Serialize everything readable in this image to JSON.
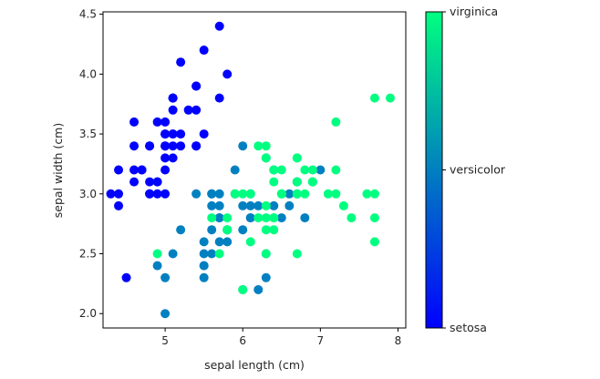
{
  "chart_data": {
    "type": "scatter",
    "title": "",
    "xlabel": "sepal length (cm)",
    "ylabel": "sepal width (cm)",
    "xlim": [
      4.2,
      8.1
    ],
    "ylim": [
      1.88,
      4.52
    ],
    "x_ticks": [
      5,
      6,
      7,
      8
    ],
    "x_tick_labels": [
      "5",
      "6",
      "7",
      "8"
    ],
    "y_ticks": [
      2.0,
      2.5,
      3.0,
      3.5,
      4.0,
      4.5
    ],
    "y_tick_labels": [
      "2.0",
      "2.5",
      "3.0",
      "3.5",
      "4.0",
      "4.5"
    ],
    "grid": false,
    "colormap": {
      "low": "#0000ff",
      "high": "#00ff80"
    },
    "colorbar": {
      "ticks": [
        0,
        1,
        2
      ],
      "labels": [
        "setosa",
        "versicolor",
        "virginica"
      ]
    },
    "series": [
      {
        "class_index": 0,
        "color": "#0000ff",
        "points": [
          [
            5.1,
            3.5
          ],
          [
            4.9,
            3.0
          ],
          [
            4.7,
            3.2
          ],
          [
            4.6,
            3.1
          ],
          [
            5.0,
            3.6
          ],
          [
            5.4,
            3.9
          ],
          [
            4.6,
            3.4
          ],
          [
            5.0,
            3.4
          ],
          [
            4.4,
            2.9
          ],
          [
            4.9,
            3.1
          ],
          [
            5.4,
            3.7
          ],
          [
            4.8,
            3.4
          ],
          [
            4.8,
            3.0
          ],
          [
            4.3,
            3.0
          ],
          [
            5.8,
            4.0
          ],
          [
            5.7,
            4.4
          ],
          [
            5.4,
            3.9
          ],
          [
            5.1,
            3.5
          ],
          [
            5.7,
            3.8
          ],
          [
            5.1,
            3.8
          ],
          [
            5.4,
            3.4
          ],
          [
            5.1,
            3.7
          ],
          [
            4.6,
            3.6
          ],
          [
            5.1,
            3.3
          ],
          [
            4.8,
            3.4
          ],
          [
            5.0,
            3.0
          ],
          [
            5.0,
            3.4
          ],
          [
            5.2,
            3.5
          ],
          [
            5.2,
            3.4
          ],
          [
            4.7,
            3.2
          ],
          [
            4.8,
            3.1
          ],
          [
            5.4,
            3.4
          ],
          [
            5.2,
            4.1
          ],
          [
            5.5,
            4.2
          ],
          [
            4.9,
            3.1
          ],
          [
            5.0,
            3.2
          ],
          [
            5.5,
            3.5
          ],
          [
            4.9,
            3.6
          ],
          [
            4.4,
            3.0
          ],
          [
            5.1,
            3.4
          ],
          [
            5.0,
            3.5
          ],
          [
            4.5,
            2.3
          ],
          [
            4.4,
            3.2
          ],
          [
            5.0,
            3.5
          ],
          [
            5.1,
            3.8
          ],
          [
            4.8,
            3.0
          ],
          [
            5.1,
            3.8
          ],
          [
            4.6,
            3.2
          ],
          [
            5.3,
            3.7
          ],
          [
            5.0,
            3.3
          ]
        ]
      },
      {
        "class_index": 1,
        "color": "#0080c0",
        "points": [
          [
            7.0,
            3.2
          ],
          [
            6.4,
            3.2
          ],
          [
            6.9,
            3.1
          ],
          [
            5.5,
            2.3
          ],
          [
            6.5,
            2.8
          ],
          [
            5.7,
            2.8
          ],
          [
            6.3,
            3.3
          ],
          [
            4.9,
            2.4
          ],
          [
            6.6,
            2.9
          ],
          [
            5.2,
            2.7
          ],
          [
            5.0,
            2.0
          ],
          [
            5.9,
            3.0
          ],
          [
            6.0,
            2.2
          ],
          [
            6.1,
            2.9
          ],
          [
            5.6,
            2.9
          ],
          [
            6.7,
            3.1
          ],
          [
            5.6,
            3.0
          ],
          [
            5.8,
            2.7
          ],
          [
            6.2,
            2.2
          ],
          [
            5.6,
            2.5
          ],
          [
            5.9,
            3.2
          ],
          [
            6.1,
            2.8
          ],
          [
            6.3,
            2.5
          ],
          [
            6.1,
            2.8
          ],
          [
            6.4,
            2.9
          ],
          [
            6.6,
            3.0
          ],
          [
            6.8,
            2.8
          ],
          [
            6.7,
            3.0
          ],
          [
            6.0,
            2.9
          ],
          [
            5.7,
            2.6
          ],
          [
            5.5,
            2.4
          ],
          [
            5.5,
            2.4
          ],
          [
            5.8,
            2.7
          ],
          [
            6.0,
            2.7
          ],
          [
            5.4,
            3.0
          ],
          [
            6.0,
            3.4
          ],
          [
            6.7,
            3.1
          ],
          [
            6.3,
            2.3
          ],
          [
            5.6,
            3.0
          ],
          [
            5.5,
            2.5
          ],
          [
            5.5,
            2.6
          ],
          [
            6.1,
            3.0
          ],
          [
            5.8,
            2.6
          ],
          [
            5.0,
            2.3
          ],
          [
            5.6,
            2.7
          ],
          [
            5.7,
            3.0
          ],
          [
            5.7,
            2.9
          ],
          [
            6.2,
            2.9
          ],
          [
            5.1,
            2.5
          ],
          [
            5.7,
            2.8
          ]
        ]
      },
      {
        "class_index": 2,
        "color": "#00ff80",
        "points": [
          [
            6.3,
            3.3
          ],
          [
            5.8,
            2.7
          ],
          [
            7.1,
            3.0
          ],
          [
            6.3,
            2.9
          ],
          [
            6.5,
            3.0
          ],
          [
            7.6,
            3.0
          ],
          [
            4.9,
            2.5
          ],
          [
            7.3,
            2.9
          ],
          [
            6.7,
            2.5
          ],
          [
            7.2,
            3.6
          ],
          [
            6.5,
            3.2
          ],
          [
            6.4,
            2.7
          ],
          [
            6.8,
            3.0
          ],
          [
            5.7,
            2.5
          ],
          [
            5.8,
            2.8
          ],
          [
            6.4,
            3.2
          ],
          [
            6.5,
            3.0
          ],
          [
            7.7,
            3.8
          ],
          [
            7.7,
            2.6
          ],
          [
            6.0,
            2.2
          ],
          [
            6.9,
            3.2
          ],
          [
            5.6,
            2.8
          ],
          [
            7.7,
            2.8
          ],
          [
            6.3,
            2.7
          ],
          [
            6.7,
            3.3
          ],
          [
            7.2,
            3.2
          ],
          [
            6.2,
            2.8
          ],
          [
            6.1,
            3.0
          ],
          [
            6.4,
            2.8
          ],
          [
            7.2,
            3.0
          ],
          [
            7.4,
            2.8
          ],
          [
            7.9,
            3.8
          ],
          [
            6.4,
            2.8
          ],
          [
            6.3,
            2.8
          ],
          [
            6.1,
            2.6
          ],
          [
            7.7,
            3.0
          ],
          [
            6.3,
            3.4
          ],
          [
            6.4,
            3.1
          ],
          [
            6.0,
            3.0
          ],
          [
            6.9,
            3.1
          ],
          [
            6.7,
            3.1
          ],
          [
            6.9,
            3.1
          ],
          [
            5.8,
            2.7
          ],
          [
            6.8,
            3.2
          ],
          [
            6.7,
            3.3
          ],
          [
            6.7,
            3.0
          ],
          [
            6.3,
            2.5
          ],
          [
            6.5,
            3.0
          ],
          [
            6.2,
            3.4
          ],
          [
            5.9,
            3.0
          ]
        ]
      }
    ]
  }
}
